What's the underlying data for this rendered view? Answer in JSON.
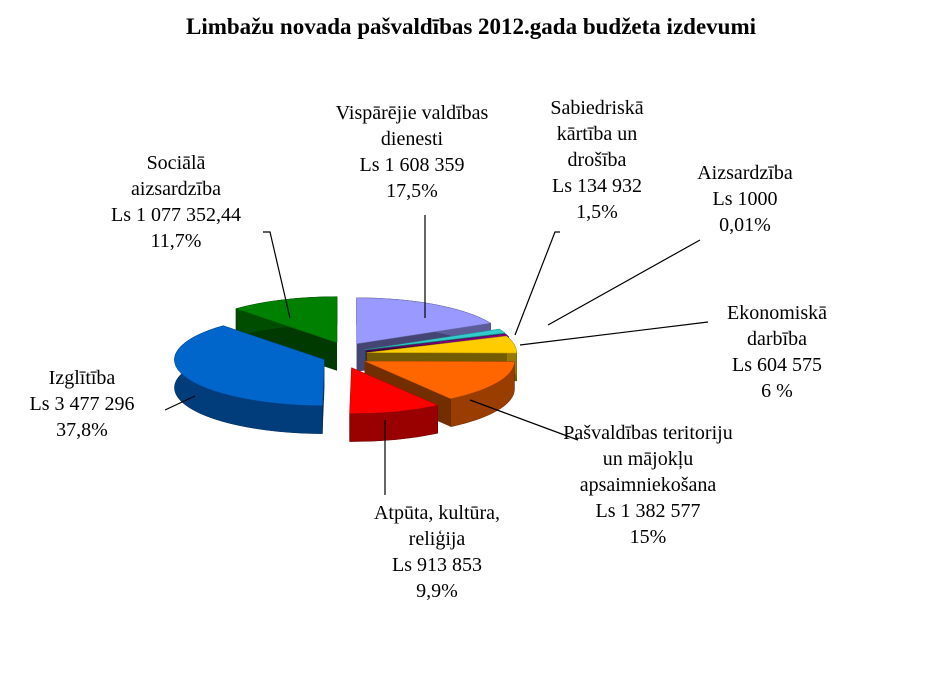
{
  "chart_data": {
    "type": "pie",
    "title": "Limbažu novada pašvaldības 2012.gada budžeta izdevumi",
    "categories": [
      "Vispārējie valdības dienesti",
      "Sabiedriskā kārtība un drošība",
      "Aizsardzība",
      "Ekonomiskā darbība",
      "Pašvaldības teritoriju un mājokļu apsaimniekošana",
      "Atpūta, kultūra, reliģija",
      "Izglītība",
      "Sociālā aizsardzība"
    ],
    "values": [
      17.5,
      1.5,
      0.01,
      6,
      15,
      9.9,
      37.8,
      11.7
    ],
    "value_labels": [
      "17,5%",
      "1,5%",
      "0,01%",
      "6 %",
      "15%",
      "9,9%",
      "37,8%",
      "11,7%"
    ],
    "amounts": [
      1608359,
      134932,
      1000,
      604575,
      1382577,
      913853,
      3477296,
      1077352.44
    ],
    "amount_labels": [
      "Ls 1 608 359",
      "Ls 134 932",
      "Ls 1000",
      "Ls 604 575",
      "Ls 1 382 577",
      "Ls 913 853",
      "Ls 3 477 296",
      "Ls 1 077 352,44"
    ],
    "colors": [
      "#9999ff",
      "#33cccc",
      "#800080",
      "#ffcc00",
      "#ff6600",
      "#ff0000",
      "#0066cc",
      "#008000"
    ]
  }
}
